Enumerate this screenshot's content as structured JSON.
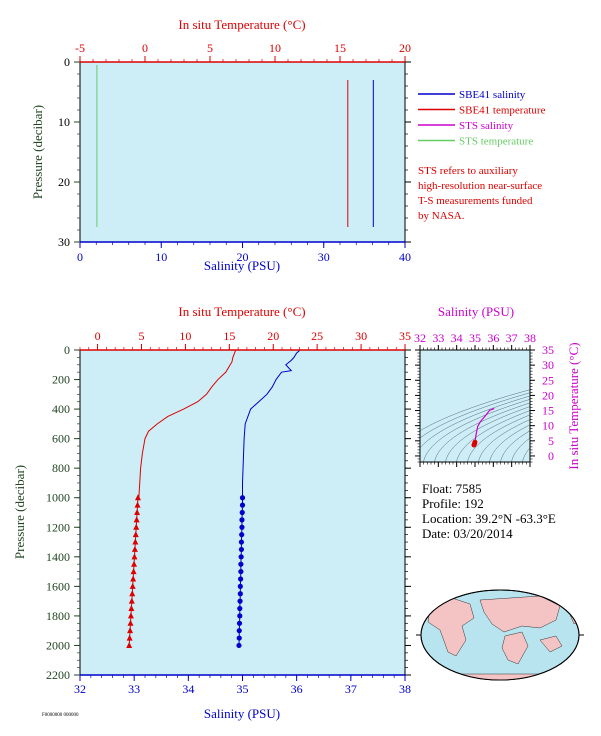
{
  "colors": {
    "plot_bg": "#cdeef7",
    "salinity": "#0000cc",
    "temperature": "#dd0000",
    "sts_salinity": "#cc00cc",
    "sts_temperature": "#66cc66",
    "pressure_axis": "#224422",
    "ts_contour": "#556677",
    "ocean": "#b8e4f0",
    "land": "#f4c4c4"
  },
  "legend": {
    "items": [
      {
        "label": "SBE41 salinity",
        "color": "#0000cc"
      },
      {
        "label": "SBE41 temperature",
        "color": "#dd0000"
      },
      {
        "label": "STS salinity",
        "color": "#cc00cc"
      },
      {
        "label": "STS temperature",
        "color": "#66cc66"
      }
    ],
    "note_lines": [
      "STS refers to auxiliary",
      "high-resolution near-surface",
      "T-S measurements funded",
      "by NASA."
    ]
  },
  "info": {
    "float": "Float:  7585",
    "profile": "Profile:  192",
    "location": "Location:  39.2°N  -63.3°E",
    "date": "Date:  03/20/2014"
  },
  "footer_code": "F0000000 000000",
  "chart_data": [
    {
      "type": "line",
      "name": "near-surface profile",
      "temp_axis_label": "In situ Temperature (°C)",
      "sal_axis_label": "Salinity (PSU)",
      "pressure_axis_label": "Pressure (decibar)",
      "temp_lim": [
        -5,
        20
      ],
      "temp_ticks": [
        -5,
        0,
        5,
        10,
        15,
        20
      ],
      "sal_lim": [
        0,
        40
      ],
      "sal_ticks": [
        0,
        10,
        20,
        30,
        40
      ],
      "pressure_lim": [
        0,
        30
      ],
      "pressure_ticks": [
        0,
        10,
        20,
        30
      ],
      "series": [
        {
          "name": "SBE41 salinity",
          "axis": "salinity",
          "color": "#0000cc",
          "pressure": [
            3,
            27.5
          ],
          "values": [
            36.1,
            36.1
          ]
        },
        {
          "name": "SBE41 temperature",
          "axis": "temperature",
          "color": "#dd0000",
          "pressure": [
            3,
            27.5
          ],
          "values": [
            15.6,
            15.6
          ]
        },
        {
          "name": "STS temperature",
          "axis": "temperature",
          "color": "#66cc66",
          "pressure": [
            0.5,
            27.5
          ],
          "values": [
            -3.7,
            -3.7
          ]
        }
      ]
    },
    {
      "type": "line",
      "name": "full profile",
      "temp_axis_label": "In situ Temperature (°C)",
      "sal_axis_label": "Salinity (PSU)",
      "pressure_axis_label": "Pressure (decibar)",
      "temp_lim": [
        -2,
        35
      ],
      "temp_ticks": [
        0,
        5,
        10,
        15,
        20,
        25,
        30,
        35
      ],
      "sal_lim": [
        32,
        38
      ],
      "sal_ticks": [
        32,
        33,
        34,
        35,
        36,
        37,
        38
      ],
      "pressure_lim": [
        0,
        2200
      ],
      "pressure_ticks": [
        0,
        200,
        400,
        600,
        800,
        1000,
        1200,
        1400,
        1600,
        1800,
        2000,
        2200
      ],
      "temperature": {
        "pressure": [
          5,
          20,
          50,
          80,
          100,
          150,
          200,
          250,
          300,
          350,
          400,
          450,
          500,
          550,
          600,
          700,
          800,
          900,
          1000
        ],
        "values": [
          15.7,
          15.6,
          15.4,
          15.3,
          15.1,
          14.6,
          13.7,
          13.0,
          12.4,
          11.4,
          9.8,
          8.0,
          6.8,
          5.8,
          5.4,
          5.1,
          4.9,
          4.8,
          4.7
        ]
      },
      "temperature_markers": {
        "pressure": [
          1000,
          1050,
          1100,
          1150,
          1200,
          1250,
          1300,
          1350,
          1400,
          1450,
          1500,
          1550,
          1600,
          1650,
          1700,
          1750,
          1800,
          1850,
          1900,
          1950,
          2000
        ],
        "values": [
          4.6,
          4.55,
          4.5,
          4.45,
          4.4,
          4.35,
          4.3,
          4.25,
          4.2,
          4.15,
          4.1,
          4.05,
          4.0,
          3.95,
          3.9,
          3.85,
          3.8,
          3.75,
          3.7,
          3.65,
          3.6
        ]
      },
      "salinity": {
        "pressure": [
          5,
          20,
          50,
          70,
          100,
          140,
          150,
          200,
          250,
          300,
          350,
          400,
          500,
          600,
          700,
          800,
          900,
          1000
        ],
        "values": [
          36.05,
          36.0,
          35.95,
          35.9,
          35.8,
          35.9,
          35.72,
          35.62,
          35.55,
          35.45,
          35.3,
          35.15,
          35.05,
          35.03,
          35.02,
          35.01,
          35.0,
          35.0
        ]
      },
      "salinity_markers": {
        "pressure": [
          1000,
          1050,
          1100,
          1150,
          1200,
          1250,
          1300,
          1350,
          1400,
          1450,
          1500,
          1550,
          1600,
          1650,
          1700,
          1750,
          1800,
          1850,
          1900,
          1950,
          2000
        ],
        "values": [
          35.0,
          35.0,
          34.995,
          34.99,
          34.99,
          34.985,
          34.98,
          34.98,
          34.975,
          34.97,
          34.97,
          34.965,
          34.96,
          34.96,
          34.955,
          34.95,
          34.95,
          34.945,
          34.94,
          34.94,
          34.935
        ]
      }
    },
    {
      "type": "scatter",
      "name": "T-S diagram",
      "xlabel": "Salinity (PSU)",
      "ylabel": "In situ Temperature (°C)",
      "xlim": [
        32,
        38
      ],
      "ylim": [
        -2,
        35
      ],
      "xticks": [
        32,
        33,
        34,
        35,
        36,
        37,
        38
      ],
      "yticks": [
        0,
        5,
        10,
        15,
        20,
        25,
        30,
        35
      ],
      "curve": {
        "salinity": [
          36.05,
          35.95,
          35.8,
          35.62,
          35.45,
          35.3,
          35.15,
          35.05,
          35.02,
          35.0,
          34.97,
          34.94
        ],
        "temperature": [
          15.7,
          15.4,
          15.1,
          13.7,
          12.4,
          11.4,
          9.8,
          6.8,
          5.4,
          4.7,
          4.1,
          3.6
        ]
      },
      "deep_points": {
        "salinity": [
          35.0,
          34.99,
          34.98,
          34.97,
          34.96,
          34.95,
          34.94
        ],
        "temperature": [
          4.6,
          4.4,
          4.2,
          4.0,
          3.8,
          3.7,
          3.6
        ]
      }
    }
  ]
}
